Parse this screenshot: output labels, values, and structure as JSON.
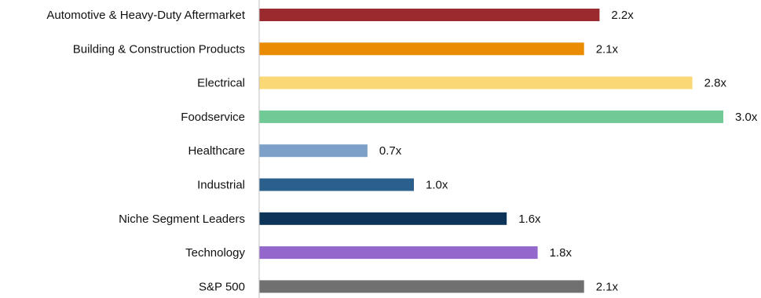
{
  "chart_data": {
    "type": "bar",
    "orientation": "horizontal",
    "title": "",
    "xlabel": "",
    "ylabel": "",
    "xlim": [
      0,
      3.0
    ],
    "grid": false,
    "legend": "none",
    "categories": [
      "Automotive & Heavy-Duty Aftermarket",
      "Building & Construction Products",
      "Electrical",
      "Foodservice",
      "Healthcare",
      "Industrial",
      "Niche Segment Leaders",
      "Technology",
      "S&P 500"
    ],
    "values": [
      2.2,
      2.1,
      2.8,
      3.0,
      0.7,
      1.0,
      1.6,
      1.8,
      2.1
    ],
    "value_labels": [
      "2.2x",
      "2.1x",
      "2.8x",
      "3.0x",
      "0.7x",
      "1.0x",
      "1.6x",
      "1.8x",
      "2.1x"
    ],
    "colors": [
      "#9B2A2F",
      "#EB8C00",
      "#FBD876",
      "#6FCA96",
      "#7CA0C7",
      "#2B5F8C",
      "#0C3559",
      "#9467CC",
      "#707070"
    ],
    "axis_color": "#BFBFBF"
  }
}
